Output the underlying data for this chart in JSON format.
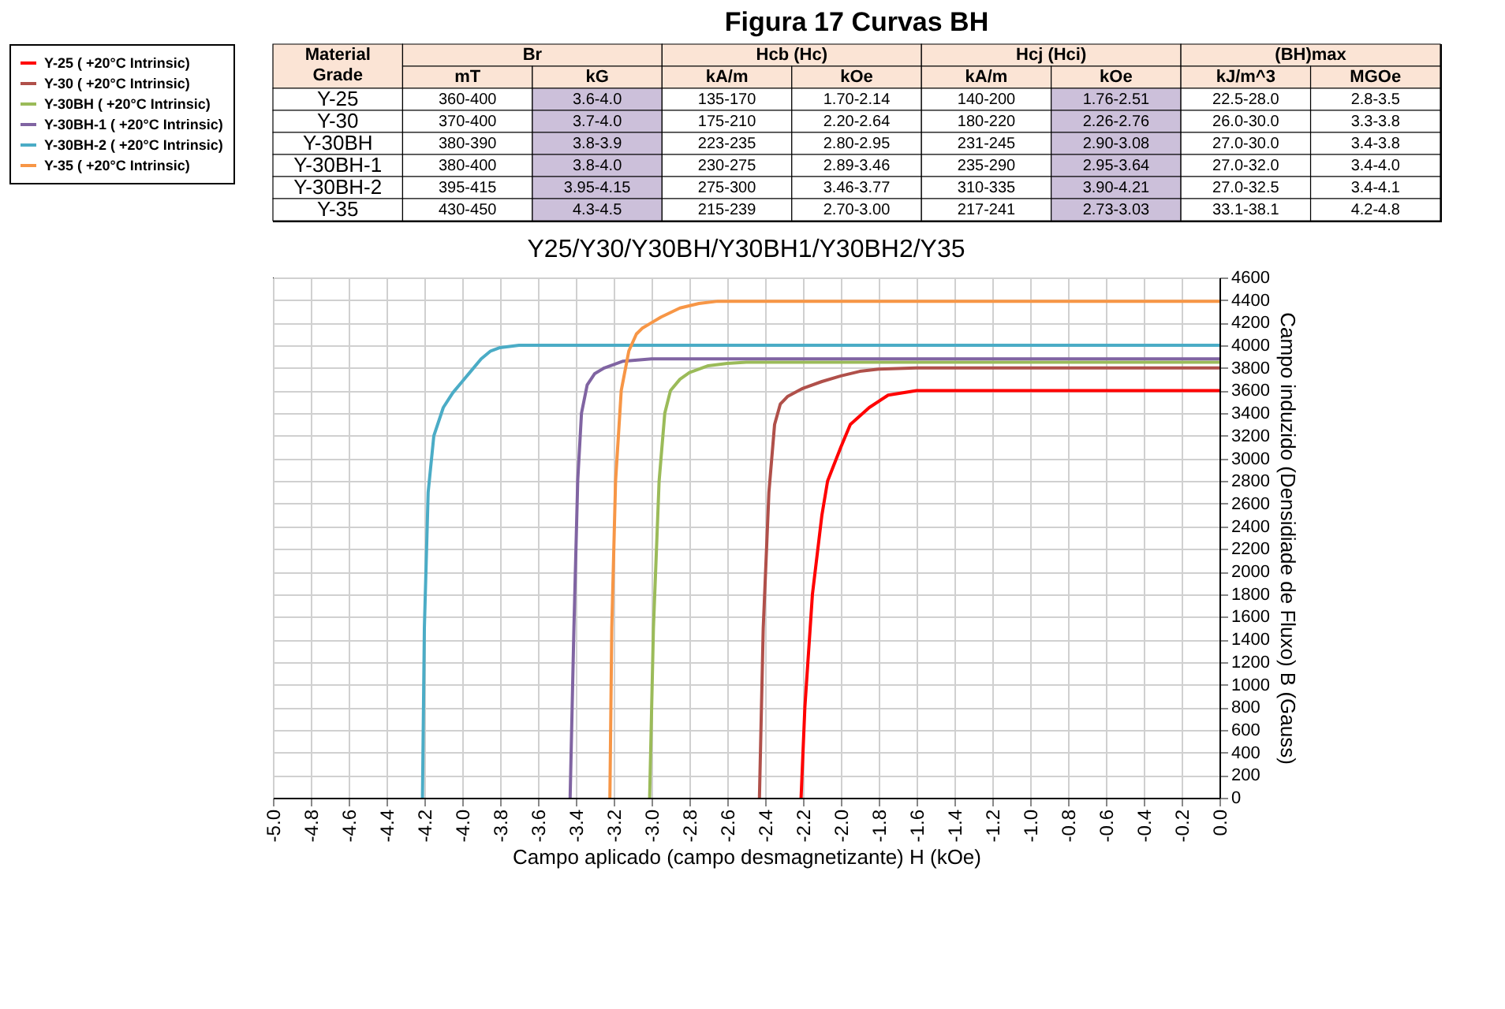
{
  "chart_data": [
    {
      "type": "heatmap",
      "title": "Figura 17 Curvas BH",
      "annotations": [
        "Material Grade",
        "Br",
        "Hcb (Hc)",
        "Hcj (Hci)",
        "(BH)max"
      ],
      "categories": [
        "mT",
        "kG",
        "kA/m",
        "kOe",
        "kA/m",
        "kOe",
        "kJ/m^3",
        "MGOe"
      ],
      "y_categories": [
        "Y-25",
        "Y-30",
        "Y-30BH",
        "Y-30BH-1",
        "Y-30BH-2",
        "Y-35"
      ],
      "colors": [
        "#ffffff",
        "#ccc0da",
        "#ffffff",
        "#ffffff",
        "#ffffff",
        "#ccc0da",
        "#ffffff",
        "#ffffff"
      ],
      "cells": [
        [
          null,
          null,
          null,
          null,
          null,
          null,
          null,
          null
        ],
        [
          null,
          null,
          null,
          null,
          null,
          null,
          null,
          null
        ],
        [
          null,
          null,
          null,
          null,
          null,
          null,
          null,
          null
        ],
        [
          null,
          null,
          null,
          null,
          null,
          null,
          null,
          null
        ],
        [
          null,
          null,
          null,
          null,
          null,
          null,
          null,
          null
        ],
        [
          null,
          null,
          null,
          null,
          null,
          null,
          null,
          null
        ]
      ],
      "cell_labels": [
        [
          "360-400",
          "3.6-4.0",
          "135-170",
          "1.70-2.14",
          "140-200",
          "1.76-2.51",
          "22.5-28.0",
          "2.8-3.5"
        ],
        [
          "370-400",
          "3.7-4.0",
          "175-210",
          "2.20-2.64",
          "180-220",
          "2.26-2.76",
          "26.0-30.0",
          "3.3-3.8"
        ],
        [
          "380-390",
          "3.8-3.9",
          "223-235",
          "2.80-2.95",
          "231-245",
          "2.90-3.08",
          "27.0-30.0",
          "3.4-3.8"
        ],
        [
          "380-400",
          "3.8-4.0",
          "230-275",
          "2.89-3.46",
          "235-290",
          "2.95-3.64",
          "27.0-32.0",
          "3.4-4.0"
        ],
        [
          "395-415",
          "3.95-4.15",
          "275-300",
          "3.46-3.77",
          "310-335",
          "3.90-4.21",
          "27.0-32.5",
          "3.4-4.1"
        ],
        [
          "430-450",
          "4.3-4.5",
          "215-239",
          "2.70-3.00",
          "217-241",
          "2.73-3.03",
          "33.1-38.1",
          "4.2-4.8"
        ]
      ]
    },
    {
      "type": "line",
      "title": "Y25/Y30/Y30BH/Y30BH1/Y30BH2/Y35",
      "xlabel": "Campo aplicado (campo desmagnetizante) H (kOe)",
      "ylabel": "Campo induzido (Densidiade de Fluxo) B (Gauss)",
      "xlim": [
        -5.0,
        0.0
      ],
      "xticks": [
        {
          "value": -5.0,
          "label": "-5.0"
        },
        -4.8,
        -4.6,
        -4.4,
        -4.2,
        {
          "value": -4.0,
          "label": "-4.0"
        },
        -3.8,
        -3.6,
        -3.4,
        -3.2,
        {
          "value": -3.0,
          "label": "-3.0"
        },
        -2.8,
        -2.6,
        -2.4,
        -2.2,
        {
          "value": -2.0,
          "label": "-2.0"
        },
        -1.8,
        -1.6,
        -1.4,
        -1.2,
        {
          "value": -1.0,
          "label": "-1.0"
        },
        -0.8,
        -0.6,
        -0.4,
        -0.2,
        {
          "value": 0.0,
          "label": "0.0"
        }
      ],
      "ylim": [
        0,
        4600
      ],
      "yticks": [
        0,
        200,
        400,
        600,
        800,
        1000,
        1200,
        1400,
        1600,
        1800,
        2000,
        2200,
        2400,
        2600,
        2800,
        3000,
        3200,
        3400,
        3600,
        3800,
        4000,
        4200,
        4400,
        4600
      ],
      "grid": true,
      "legend": "top left",
      "marker": "none",
      "line_style": "solid",
      "series": [
        {
          "name": "Y-25 ( +20°C Intrinsic)",
          "color": "#ff0000",
          "x": [
            -2.21,
            -2.19,
            -2.15,
            -2.1,
            -2.07,
            -2.0,
            -1.95,
            -1.85,
            -1.75,
            -1.6,
            -1.0,
            0.0
          ],
          "values": [
            0,
            800,
            1800,
            2500,
            2800,
            3100,
            3300,
            3450,
            3560,
            3600,
            3600,
            3600
          ]
        },
        {
          "name": "Y-30 ( +20°C Intrinsic)",
          "color": "#b0504a",
          "x": [
            -2.43,
            -2.41,
            -2.38,
            -2.35,
            -2.32,
            -2.28,
            -2.2,
            -2.1,
            -2.0,
            -1.9,
            -1.8,
            -1.6,
            0.0
          ],
          "values": [
            0,
            1500,
            2700,
            3300,
            3480,
            3550,
            3620,
            3680,
            3730,
            3770,
            3790,
            3800,
            3800
          ]
        },
        {
          "name": "Y-30BH ( +20°C Intrinsic)",
          "color": "#9bbb59",
          "x": [
            -3.01,
            -2.99,
            -2.96,
            -2.93,
            -2.9,
            -2.85,
            -2.8,
            -2.7,
            -2.6,
            -2.5,
            -2.4,
            0.0
          ],
          "values": [
            0,
            1500,
            2800,
            3400,
            3600,
            3700,
            3760,
            3820,
            3840,
            3850,
            3850,
            3850
          ]
        },
        {
          "name": "Y-30BH-1 ( +20°C Intrinsic)",
          "color": "#8064a2",
          "x": [
            -3.43,
            -3.41,
            -3.39,
            -3.37,
            -3.34,
            -3.3,
            -3.25,
            -3.15,
            -3.0,
            -2.9,
            0.0
          ],
          "values": [
            0,
            1500,
            2800,
            3400,
            3650,
            3750,
            3800,
            3860,
            3880,
            3880,
            3880
          ]
        },
        {
          "name": "Y-30BH-2 ( +20°C Intrinsic)",
          "color": "#4bacc6",
          "x": [
            -4.21,
            -4.2,
            -4.18,
            -4.15,
            -4.1,
            -4.05,
            -4.0,
            -3.95,
            -3.9,
            -3.85,
            -3.8,
            -3.7,
            -3.6,
            0.0
          ],
          "values": [
            0,
            1500,
            2700,
            3200,
            3450,
            3580,
            3680,
            3780,
            3880,
            3950,
            3980,
            4000,
            4000,
            4000
          ]
        },
        {
          "name": "Y-35 ( +20°C Intrinsic)",
          "color": "#f79646",
          "x": [
            -3.22,
            -3.21,
            -3.19,
            -3.16,
            -3.12,
            -3.08,
            -3.05,
            -3.0,
            -2.95,
            -2.85,
            -2.75,
            -2.65,
            -2.5,
            0.0
          ],
          "values": [
            0,
            1500,
            2800,
            3600,
            3950,
            4100,
            4150,
            4200,
            4250,
            4330,
            4370,
            4390,
            4390,
            4390
          ]
        }
      ]
    }
  ]
}
